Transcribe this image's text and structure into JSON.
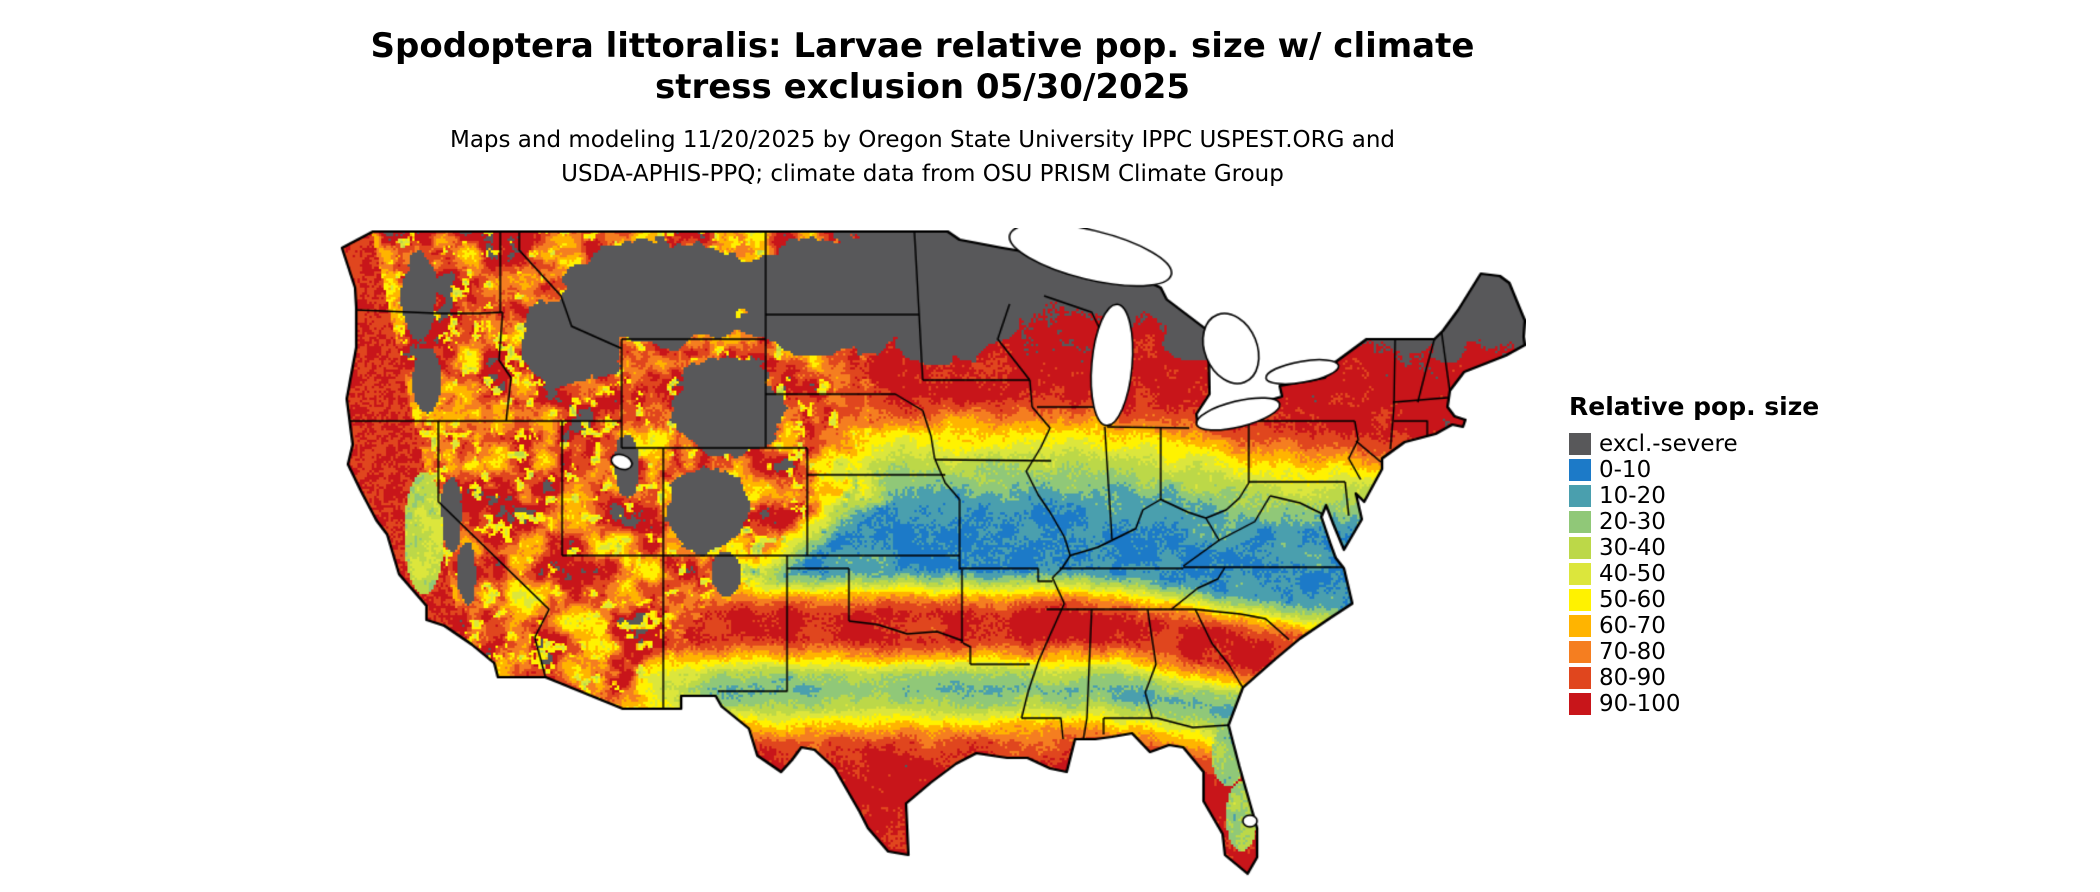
{
  "header": {
    "title_line1": "Spodoptera littoralis: Larvae relative pop. size w/ climate",
    "title_line2": "stress exclusion 05/30/2025",
    "subtitle_line1": "Maps and modeling 11/20/2025 by Oregon State University IPPC USPEST.ORG and",
    "subtitle_line2": "USDA-APHIS-PPQ; climate data from OSU PRISM Climate Group"
  },
  "legend": {
    "title": "Relative pop. size",
    "entries": [
      {
        "label": "excl.-severe",
        "color": "#58585A"
      },
      {
        "label": "0-10",
        "color": "#1C7AC8"
      },
      {
        "label": "10-20",
        "color": "#4A9FAE"
      },
      {
        "label": "20-30",
        "color": "#90C878"
      },
      {
        "label": "30-40",
        "color": "#BCD848"
      },
      {
        "label": "40-50",
        "color": "#DCE63C"
      },
      {
        "label": "50-60",
        "color": "#FFF200"
      },
      {
        "label": "60-70",
        "color": "#FFB400"
      },
      {
        "label": "70-80",
        "color": "#F57E20"
      },
      {
        "label": "80-90",
        "color": "#E0461E"
      },
      {
        "label": "90-100",
        "color": "#C8151A"
      }
    ]
  },
  "map": {
    "background": "#FFFFFF",
    "border_color": "#000000",
    "water_color": "#FFFFFF",
    "excluded_color": "#58585A"
  }
}
